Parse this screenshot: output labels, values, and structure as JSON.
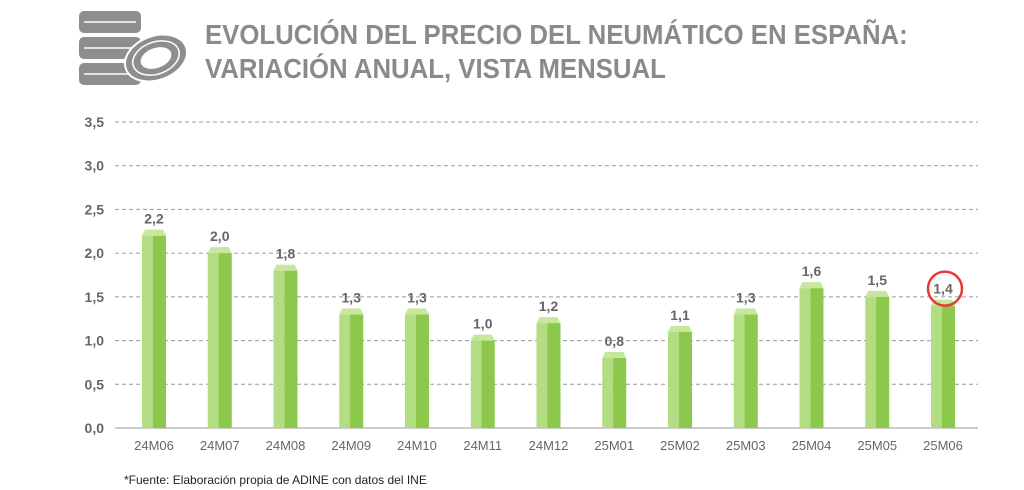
{
  "header": {
    "title_line1": "EVOLUCIÓN DEL PRECIO DEL NEUMÁTICO EN ESPAÑA:",
    "title_line2": "VARIACIÓN ANUAL, VISTA MENSUAL"
  },
  "footnote": "*Fuente: Elaboración propia de ADINE con datos del INE",
  "colors": {
    "bar_front": "#8cc84b",
    "bar_light": "#b3dd82",
    "bar_top": "#c6e79c",
    "title": "#8a8a8a",
    "label": "#666666",
    "grid": "#9a9a9a",
    "highlight": "#e53935",
    "tire": "#8e8e8e"
  },
  "chart_data": {
    "type": "bar",
    "title": "EVOLUCIÓN DEL PRECIO DEL NEUMÁTICO EN ESPAÑA: VARIACIÓN ANUAL, VISTA MENSUAL",
    "categories": [
      "24M06",
      "24M07",
      "24M08",
      "24M09",
      "24M10",
      "24M11",
      "24M12",
      "25M01",
      "25M02",
      "25M03",
      "25M04",
      "25M05",
      "25M06"
    ],
    "values": [
      2.2,
      2.0,
      1.8,
      1.3,
      1.3,
      1.0,
      1.2,
      0.8,
      1.1,
      1.3,
      1.6,
      1.5,
      1.4
    ],
    "value_labels": [
      "2,2",
      "2,0",
      "1,8",
      "1,3",
      "1,3",
      "1,0",
      "1,2",
      "0,8",
      "1,1",
      "1,3",
      "1,6",
      "1,5",
      "1,4"
    ],
    "yticks": [
      0,
      0.5,
      1.0,
      1.5,
      2.0,
      2.5,
      3.0,
      3.5
    ],
    "ytick_labels": [
      "0,0",
      "0,5",
      "1,0",
      "1,5",
      "2,0",
      "2,5",
      "3,0",
      "3,5"
    ],
    "ylim": [
      0,
      3.5
    ],
    "xlabel": "",
    "ylabel": "",
    "grid": true,
    "highlighted_category": "25M06"
  }
}
